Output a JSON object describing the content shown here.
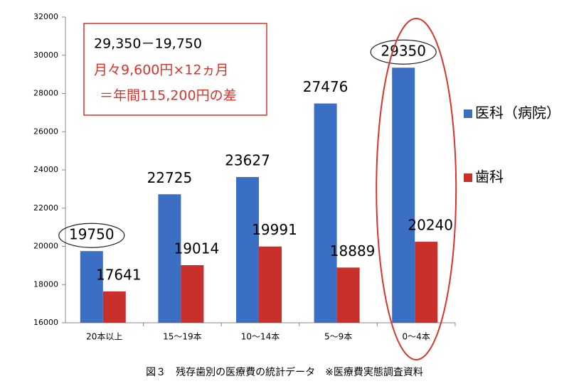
{
  "chart_data": {
    "type": "bar",
    "categories": [
      "20本以上",
      "15～19本",
      "10～14本",
      "5～9本",
      "0～4本"
    ],
    "series": [
      {
        "name": "医科（病院）",
        "color": "#3a6fc4",
        "values": [
          19750,
          22725,
          23627,
          27476,
          29350
        ]
      },
      {
        "name": "歯科",
        "color": "#c9302c",
        "values": [
          17641,
          19014,
          19991,
          18889,
          20240
        ]
      }
    ],
    "ylim": [
      16000,
      32000
    ],
    "yticks": [
      16000,
      18000,
      20000,
      22000,
      24000,
      26000,
      28000,
      30000,
      32000
    ],
    "annotations": [
      "29,350－19,750",
      "月々9,600円×12ヵ月",
      "＝年間115,200円の差"
    ],
    "caption": "図３　残存歯別の医療費の統計データ　※医療費実態調査資料",
    "legend": "right"
  }
}
